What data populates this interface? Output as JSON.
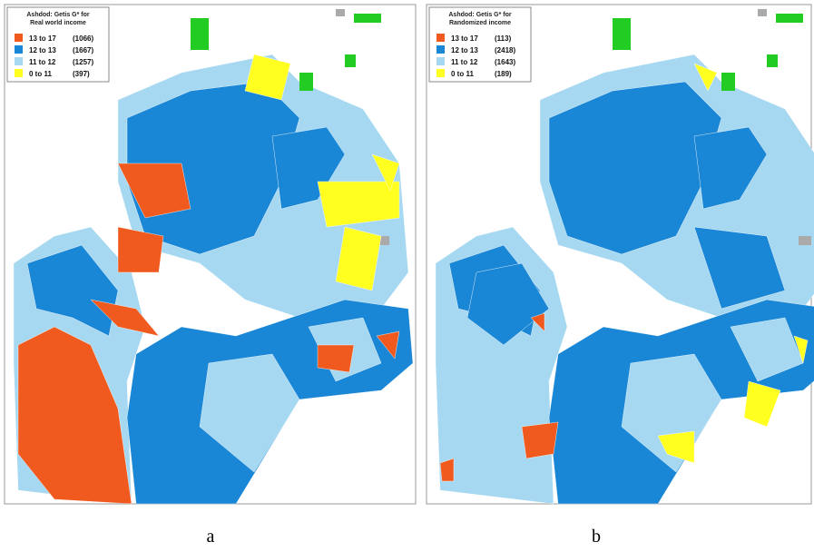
{
  "panels": [
    {
      "caption": "a",
      "legend": {
        "title": [
          "Ashdod: Getis G* for",
          "Real world income"
        ],
        "items": [
          {
            "label": "13 to 17",
            "count": "(1066)"
          },
          {
            "label": "12 to 13",
            "count": "(1667)"
          },
          {
            "label": "11 to 12",
            "count": "(1257)"
          },
          {
            "label": "0 to 11",
            "count": "(397)"
          }
        ]
      }
    },
    {
      "caption": "b",
      "legend": {
        "title": [
          "Ashdod: Getis G* for",
          "Randomized income"
        ],
        "items": [
          {
            "label": "13 to 17",
            "count": "(113)"
          },
          {
            "label": "12 to 13",
            "count": "(2418)"
          },
          {
            "label": "11 to 12",
            "count": "(1643)"
          },
          {
            "label": "0 to 11",
            "count": "(189)"
          }
        ]
      }
    }
  ]
}
